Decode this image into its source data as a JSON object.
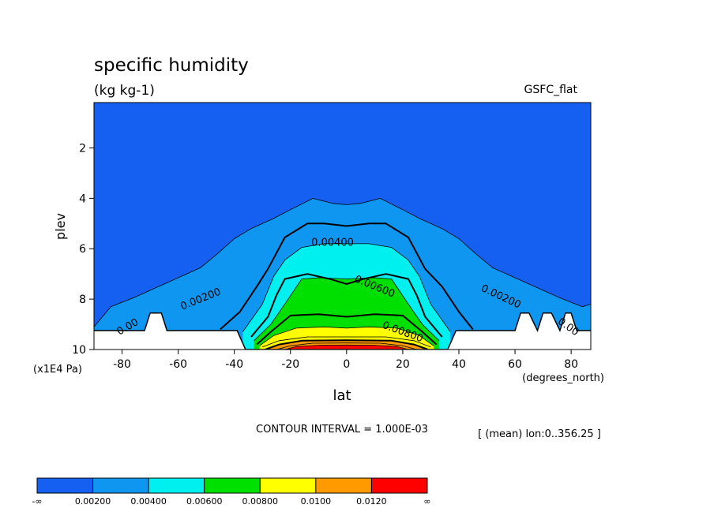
{
  "chart_data": {
    "type": "contour",
    "title": "specific humidity",
    "units": "(kg kg-1)",
    "dataset": "GSFC_flat",
    "xlabel": "lat",
    "xunits": "(degrees_north)",
    "ylabel": "plev",
    "yunits": "(x1E4 Pa)",
    "xlim": [
      -90,
      87
    ],
    "ylim": [
      10,
      0.2
    ],
    "xticks": [
      -80,
      -60,
      -40,
      -20,
      0,
      20,
      40,
      60,
      80
    ],
    "xtick_labels": [
      "-80",
      "-60",
      "-40",
      "-20",
      "0",
      "20",
      "40",
      "60",
      "80"
    ],
    "yticks": [
      2,
      4,
      6,
      8,
      10
    ],
    "ytick_labels": [
      "2",
      "4",
      "6",
      "8",
      "10"
    ],
    "contour_interval_text": "CONTOUR INTERVAL = 1.000E-03",
    "mean_text": "[ (mean) lon:0..356.25 ]",
    "contour_labels": [
      {
        "text": "0.00400",
        "lat": -5,
        "plev": 5.75,
        "angle": 0
      },
      {
        "text": "0.00600",
        "lat": 10,
        "plev": 7.5,
        "angle": 22
      },
      {
        "text": "0.00200",
        "lat": -52,
        "plev": 8.0,
        "angle": -22
      },
      {
        "text": "0.00200",
        "lat": 55,
        "plev": 7.9,
        "angle": 25
      },
      {
        "text": "0.00800",
        "lat": 20,
        "plev": 9.3,
        "angle": 20
      },
      {
        "text": "0.00",
        "lat": -78,
        "plev": 9.1,
        "angle": -30
      },
      {
        "text": "0.00",
        "lat": 79,
        "plev": 9.1,
        "angle": 35
      }
    ],
    "levels": [
      {
        "lower": "-∞",
        "upper": "0.00200",
        "color": "#1560f0"
      },
      {
        "lower": "0.00200",
        "upper": "0.00400",
        "color": "#0f96f0"
      },
      {
        "lower": "0.00400",
        "upper": "0.00600",
        "color": "#00f0f0"
      },
      {
        "lower": "0.00600",
        "upper": "0.00800",
        "color": "#00e000"
      },
      {
        "lower": "0.00800",
        "upper": "0.0100",
        "color": "#ffff00"
      },
      {
        "lower": "0.0100",
        "upper": "0.0120",
        "color": "#ff9a00"
      },
      {
        "lower": "0.0120",
        "upper": "∞",
        "color": "#ff0000"
      }
    ],
    "colorbar_labels": [
      "-∞",
      "0.00200",
      "0.00400",
      "0.00600",
      "0.00800",
      "0.0100",
      "0.0120",
      "∞"
    ],
    "contours": {
      "q2": [
        [
          -90,
          9.1
        ],
        [
          -84,
          8.3
        ],
        [
          -76,
          7.95
        ],
        [
          -68,
          7.55
        ],
        [
          -60,
          7.15
        ],
        [
          -52,
          6.75
        ],
        [
          -46,
          6.2
        ],
        [
          -40,
          5.6
        ],
        [
          -34,
          5.2
        ],
        [
          -26,
          4.8
        ],
        [
          -20,
          4.45
        ],
        [
          -12,
          4.0
        ],
        [
          -5,
          4.2
        ],
        [
          0,
          4.25
        ],
        [
          5,
          4.2
        ],
        [
          12,
          4.0
        ],
        [
          20,
          4.45
        ],
        [
          26,
          4.8
        ],
        [
          34,
          5.2
        ],
        [
          40,
          5.6
        ],
        [
          46,
          6.2
        ],
        [
          52,
          6.75
        ],
        [
          60,
          7.15
        ],
        [
          68,
          7.55
        ],
        [
          76,
          7.95
        ],
        [
          84,
          8.3
        ],
        [
          87,
          8.2
        ]
      ],
      "q3": [
        [
          -45,
          9.2
        ],
        [
          -38,
          8.5
        ],
        [
          -32,
          7.5
        ],
        [
          -28,
          6.8
        ],
        [
          -22,
          5.55
        ],
        [
          -14,
          5.0
        ],
        [
          -8,
          5.0
        ],
        [
          0,
          5.1
        ],
        [
          8,
          5.0
        ],
        [
          14,
          5.0
        ],
        [
          22,
          5.55
        ],
        [
          28,
          6.8
        ],
        [
          34,
          7.5
        ],
        [
          40,
          8.5
        ],
        [
          45,
          9.2
        ]
      ],
      "q4": [
        [
          -37,
          9.3
        ],
        [
          -30,
          8.2
        ],
        [
          -26,
          7.1
        ],
        [
          -22,
          6.45
        ],
        [
          -16,
          5.95
        ],
        [
          -8,
          5.8
        ],
        [
          0,
          5.8
        ],
        [
          8,
          5.8
        ],
        [
          16,
          5.95
        ],
        [
          22,
          6.45
        ],
        [
          26,
          7.1
        ],
        [
          30,
          8.2
        ],
        [
          37,
          9.3
        ]
      ],
      "q5": [
        [
          -34,
          9.5
        ],
        [
          -28,
          8.7
        ],
        [
          -25,
          7.85
        ],
        [
          -22,
          7.2
        ],
        [
          -14,
          7.0
        ],
        [
          -6,
          7.2
        ],
        [
          0,
          7.4
        ],
        [
          6,
          7.2
        ],
        [
          14,
          7.0
        ],
        [
          22,
          7.2
        ],
        [
          25,
          7.85
        ],
        [
          28,
          8.7
        ],
        [
          34,
          9.5
        ]
      ],
      "q6": [
        [
          -33,
          9.65
        ],
        [
          -27,
          9.0
        ],
        [
          -22,
          8.2
        ],
        [
          -16,
          7.2
        ],
        [
          -10,
          7.15
        ],
        [
          0,
          7.2
        ],
        [
          10,
          7.15
        ],
        [
          16,
          7.2
        ],
        [
          22,
          8.2
        ],
        [
          27,
          9.0
        ],
        [
          33,
          9.65
        ]
      ],
      "q7": [
        [
          -32,
          9.8
        ],
        [
          -27,
          9.3
        ],
        [
          -20,
          8.65
        ],
        [
          -10,
          8.6
        ],
        [
          0,
          8.7
        ],
        [
          10,
          8.6
        ],
        [
          20,
          8.65
        ],
        [
          27,
          9.3
        ],
        [
          32,
          9.8
        ]
      ],
      "q8": [
        [
          -31,
          9.85
        ],
        [
          -26,
          9.45
        ],
        [
          -18,
          9.15
        ],
        [
          -8,
          9.1
        ],
        [
          0,
          9.15
        ],
        [
          8,
          9.1
        ],
        [
          18,
          9.15
        ],
        [
          26,
          9.45
        ],
        [
          31,
          9.85
        ]
      ],
      "q9": [
        [
          -30,
          9.9
        ],
        [
          -24,
          9.65
        ],
        [
          -14,
          9.5
        ],
        [
          0,
          9.5
        ],
        [
          14,
          9.5
        ],
        [
          24,
          9.65
        ],
        [
          30,
          9.9
        ]
      ],
      "q10": [
        [
          -29,
          10
        ],
        [
          -24,
          9.8
        ],
        [
          -16,
          9.65
        ],
        [
          0,
          9.63
        ],
        [
          16,
          9.65
        ],
        [
          24,
          9.8
        ],
        [
          29,
          10
        ]
      ],
      "q11": [
        [
          -25,
          10
        ],
        [
          -20,
          9.85
        ],
        [
          -12,
          9.75
        ],
        [
          0,
          9.74
        ],
        [
          12,
          9.75
        ],
        [
          20,
          9.85
        ],
        [
          25,
          10
        ]
      ],
      "q12": [
        [
          -22,
          10
        ],
        [
          -18,
          9.88
        ],
        [
          -10,
          9.83
        ],
        [
          0,
          9.82
        ],
        [
          10,
          9.83
        ],
        [
          18,
          9.88
        ],
        [
          22,
          10
        ]
      ]
    },
    "terrain": [
      [
        -90,
        9.25
      ],
      [
        -72,
        9.25
      ],
      [
        -70,
        8.55
      ],
      [
        -66,
        8.55
      ],
      [
        -64,
        9.25
      ],
      [
        -39,
        9.25
      ],
      [
        -36,
        10
      ],
      [
        36,
        10
      ],
      [
        39,
        9.25
      ],
      [
        60,
        9.25
      ],
      [
        62,
        8.55
      ],
      [
        65,
        8.55
      ],
      [
        68,
        9.25
      ],
      [
        70,
        8.55
      ],
      [
        73,
        8.55
      ],
      [
        76,
        9.25
      ],
      [
        78,
        8.55
      ],
      [
        80,
        8.55
      ],
      [
        82,
        9.25
      ],
      [
        87,
        9.25
      ]
    ]
  }
}
